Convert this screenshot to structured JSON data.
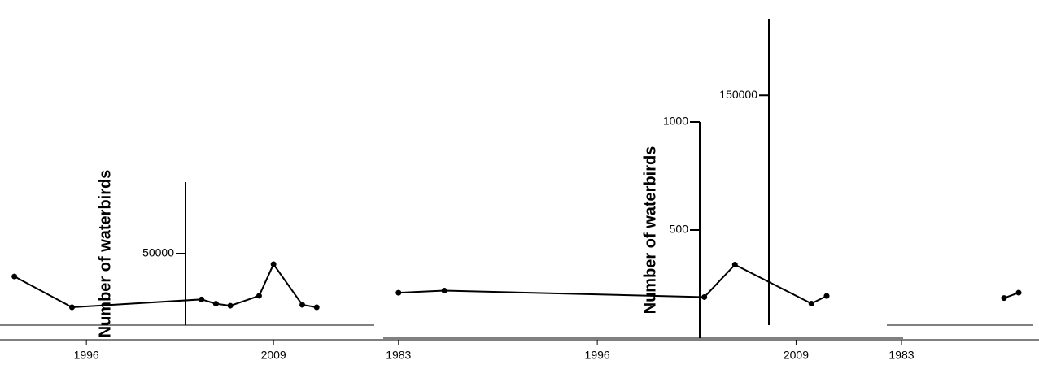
{
  "chart_data": [
    {
      "type": "line",
      "y_label": "Number of waterbirds",
      "x": [
        1991,
        1995,
        2004,
        2005,
        2006,
        2008,
        2009,
        2011,
        2012
      ],
      "values": [
        34000,
        12500,
        18000,
        15000,
        13600,
        20500,
        42600,
        14200,
        12500
      ],
      "color": "#000000",
      "xlim": [
        1990,
        2016
      ],
      "xticks": [
        1996,
        2009
      ],
      "ylim": [
        0,
        100000
      ],
      "yticks": [
        50000
      ]
    },
    {
      "type": "line",
      "y_label": "Number of waterbirds",
      "x": [
        1983,
        1986,
        2003,
        2005,
        2010,
        2011
      ],
      "values": [
        210,
        220,
        190,
        340,
        160,
        195
      ],
      "color": "#000000",
      "xlim": [
        1982,
        2016
      ],
      "xticks": [
        1983,
        1996,
        2009
      ],
      "ylim": [
        0,
        1000
      ],
      "yticks": [
        500,
        1000
      ]
    },
    {
      "type": "line",
      "x": [
        1990,
        1991
      ],
      "values": [
        17700,
        21200
      ],
      "color": "#000000",
      "xlim": [
        1982,
        1992
      ],
      "xticks": [
        1983
      ],
      "ylim": [
        0,
        200000
      ],
      "yticks": [
        150000
      ]
    }
  ]
}
